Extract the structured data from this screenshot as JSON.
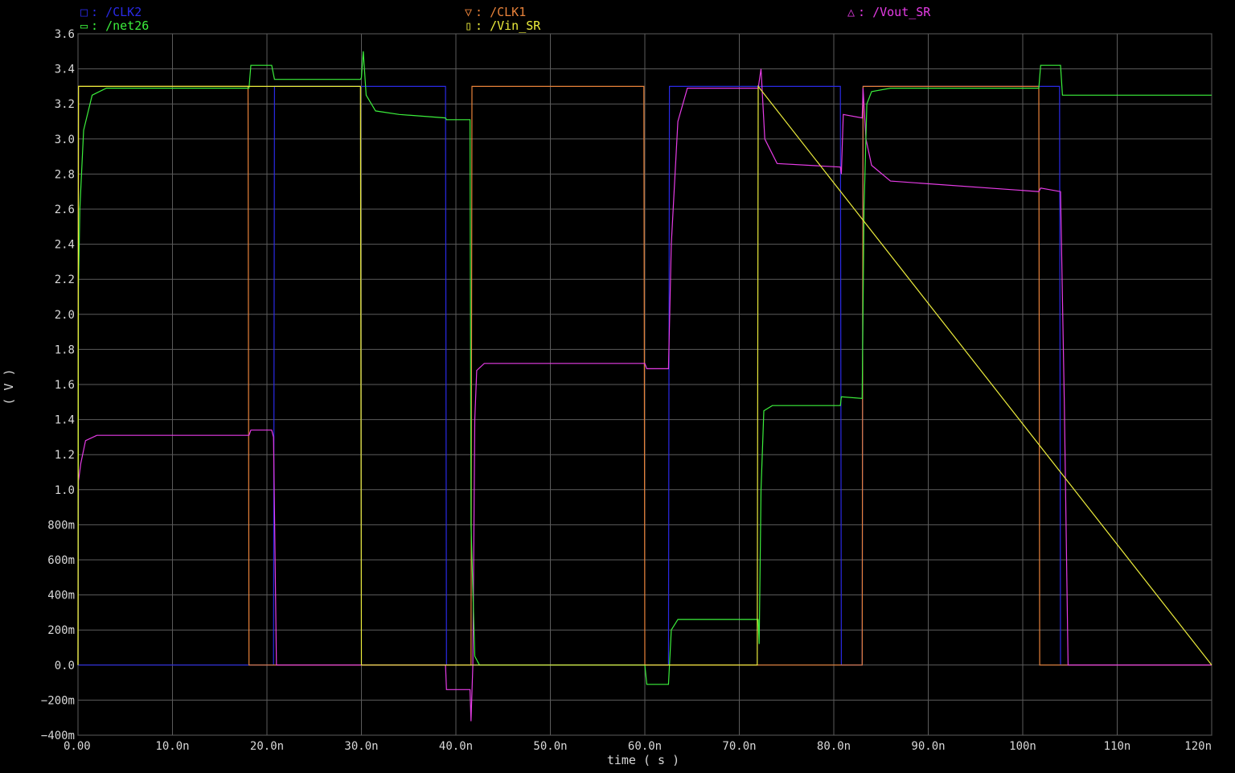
{
  "chart_data": {
    "type": "line",
    "title": "",
    "xlabel": "time ( s )",
    "ylabel": "( V )",
    "xlim": [
      0,
      120
    ],
    "x_unit": "ns",
    "ylim": [
      -0.4,
      3.6
    ],
    "grid": true,
    "legend_placement": "top",
    "x_ticks": [
      "0.00",
      "10.0n",
      "20.0n",
      "30.0n",
      "40.0n",
      "50.0n",
      "60.0n",
      "70.0n",
      "80.0n",
      "90.0n",
      "100n",
      "110n",
      "120n"
    ],
    "y_ticks": [
      {
        "v": 3.6,
        "label": "3.6"
      },
      {
        "v": 3.4,
        "label": "3.4"
      },
      {
        "v": 3.2,
        "label": "3.2"
      },
      {
        "v": 3.0,
        "label": "3.0"
      },
      {
        "v": 2.8,
        "label": "2.8"
      },
      {
        "v": 2.6,
        "label": "2.6"
      },
      {
        "v": 2.4,
        "label": "2.4"
      },
      {
        "v": 2.2,
        "label": "2.2"
      },
      {
        "v": 2.0,
        "label": "2.0"
      },
      {
        "v": 1.8,
        "label": "1.8"
      },
      {
        "v": 1.6,
        "label": "1.6"
      },
      {
        "v": 1.4,
        "label": "1.4"
      },
      {
        "v": 1.2,
        "label": "1.2"
      },
      {
        "v": 1.0,
        "label": "1.0"
      },
      {
        "v": 0.8,
        "label": "800m"
      },
      {
        "v": 0.6,
        "label": "600m"
      },
      {
        "v": 0.4,
        "label": "400m"
      },
      {
        "v": 0.2,
        "label": "200m"
      },
      {
        "v": 0.0,
        "label": "0.0"
      },
      {
        "v": -0.2,
        "label": "−200m"
      },
      {
        "v": -0.4,
        "label": "−400m"
      }
    ],
    "series": [
      {
        "name": "/CLK2",
        "legend_label": "/CLK2",
        "color": "#2a2ae6",
        "marker": "□",
        "x": [
          0,
          20.7,
          20.8,
          38.9,
          39.0,
          62.5,
          62.6,
          80.7,
          80.8,
          83.0,
          83.1,
          103.9,
          104.0,
          120
        ],
        "y": [
          0,
          0,
          3.3,
          3.3,
          0,
          0,
          3.3,
          3.3,
          0,
          0,
          3.3,
          3.3,
          0,
          0
        ]
      },
      {
        "name": "/CLK1",
        "legend_label": "/CLK1",
        "color": "#e8823a",
        "marker": "▽",
        "x": [
          0,
          0.05,
          18.0,
          18.1,
          41.6,
          41.7,
          59.9,
          60.0,
          83.0,
          83.1,
          101.7,
          101.8,
          120
        ],
        "y": [
          0,
          3.3,
          3.3,
          0,
          0,
          3.3,
          3.3,
          0,
          0,
          3.3,
          3.3,
          0,
          0
        ]
      },
      {
        "name": "/Vout_SR",
        "legend_label": "/Vout_SR",
        "color": "#e63ce6",
        "marker": "△",
        "x": [
          0,
          0.05,
          0.3,
          0.8,
          2,
          18.1,
          18.3,
          20.5,
          20.7,
          21.0,
          30.0,
          38.9,
          39.0,
          41.5,
          41.6,
          41.8,
          42.0,
          42.2,
          43,
          60.0,
          60.2,
          62.5,
          62.8,
          63.5,
          64.5,
          72.0,
          72.3,
          72.7,
          74,
          80.7,
          80.8,
          81.0,
          83.0,
          83.1,
          83.4,
          84,
          86,
          101.7,
          101.9,
          104.0,
          104.4,
          104.8,
          120
        ],
        "y": [
          0,
          1.05,
          1.15,
          1.28,
          1.31,
          1.31,
          1.34,
          1.34,
          1.3,
          0,
          0,
          0,
          -0.14,
          -0.14,
          -0.32,
          0,
          1.4,
          1.68,
          1.72,
          1.72,
          1.69,
          1.69,
          2.4,
          3.1,
          3.29,
          3.29,
          3.4,
          3.0,
          2.86,
          2.84,
          2.8,
          3.14,
          3.12,
          3.29,
          3.0,
          2.85,
          2.76,
          2.7,
          2.72,
          2.7,
          1.5,
          0,
          0
        ]
      },
      {
        "name": "/net26",
        "legend_label": "/net26",
        "color": "#3cef3c",
        "marker": "▭",
        "x": [
          0,
          0.05,
          0.2,
          0.6,
          1.5,
          3,
          18.1,
          18.3,
          20.5,
          20.8,
          29.9,
          30.0,
          30.2,
          30.5,
          31.5,
          34,
          38.9,
          39.0,
          41.5,
          41.6,
          42.0,
          42.5,
          60.0,
          60.2,
          62.5,
          62.8,
          63.5,
          72.0,
          72.1,
          72.3,
          72.6,
          73.5,
          80.7,
          80.8,
          83.0,
          83.2,
          83.5,
          84,
          86,
          101.7,
          101.9,
          104.0,
          104.2,
          120
        ],
        "y": [
          0,
          2.15,
          2.6,
          3.05,
          3.25,
          3.29,
          3.29,
          3.42,
          3.42,
          3.34,
          3.34,
          3.35,
          3.5,
          3.25,
          3.16,
          3.14,
          3.12,
          3.11,
          3.11,
          0.8,
          0.05,
          0,
          0,
          -0.11,
          -0.11,
          0.2,
          0.26,
          0.26,
          0.12,
          1.0,
          1.45,
          1.48,
          1.48,
          1.53,
          1.52,
          2.6,
          3.2,
          3.27,
          3.29,
          3.29,
          3.42,
          3.42,
          3.25,
          3.25
        ]
      },
      {
        "name": "/Vin_SR",
        "legend_label": "/Vin_SR",
        "color": "#ecec3c",
        "marker": "▯",
        "x": [
          0,
          0.05,
          29.9,
          30.0,
          71.9,
          72.0,
          120
        ],
        "y": [
          0,
          3.3,
          3.3,
          0,
          0,
          3.3,
          0
        ]
      }
    ]
  },
  "legend": [
    {
      "marker": "□",
      "text": ": /CLK2",
      "color": "#2a2ae6"
    },
    {
      "marker": "▭",
      "text": ": /net26",
      "color": "#3cef3c"
    },
    {
      "marker": "▽",
      "text": ": /CLK1",
      "color": "#e8823a"
    },
    {
      "marker": "▯",
      "text": ": /Vin_SR",
      "color": "#ecec3c"
    },
    {
      "marker": "△",
      "text": ": /Vout_SR",
      "color": "#e63ce6"
    }
  ]
}
